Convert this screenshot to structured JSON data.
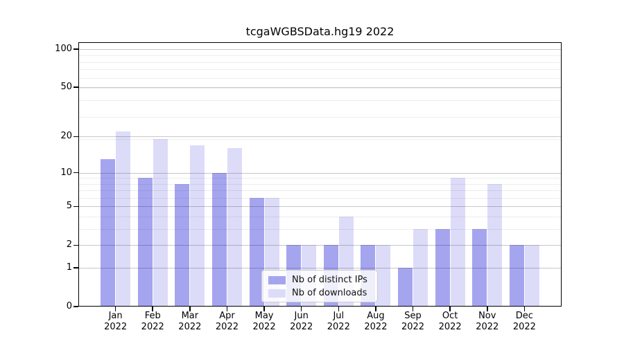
{
  "chart_data": {
    "type": "bar",
    "title": "tcgaWGBSData.hg19 2022",
    "categories": [
      "Jan 2022",
      "Feb 2022",
      "Mar 2022",
      "Apr 2022",
      "May 2022",
      "Jun 2022",
      "Jul 2022",
      "Aug 2022",
      "Sep 2022",
      "Oct 2022",
      "Nov 2022",
      "Dec 2022"
    ],
    "series": [
      {
        "name": "Nb of distinct IPs",
        "color": "#a5a5ef",
        "values": [
          13,
          9,
          8,
          10,
          6,
          2,
          2,
          2,
          1,
          3,
          3,
          2
        ]
      },
      {
        "name": "Nb of downloads",
        "color": "#dcdcf9",
        "values": [
          22,
          19,
          17,
          16,
          6,
          2,
          4,
          2,
          3,
          9,
          8,
          2
        ]
      }
    ],
    "xlabel": "",
    "ylabel": "",
    "yscale": "log1p",
    "ylim": [
      0,
      113
    ],
    "y_ticks": [
      100,
      50,
      20,
      10,
      5,
      2,
      1,
      0
    ],
    "y_minor_gridlines": [
      3,
      4,
      6,
      7,
      8,
      9,
      19,
      29,
      39,
      49,
      59,
      69,
      79,
      89
    ],
    "grid": "both",
    "legend_position": "lower center",
    "colors": {
      "major_grid": "#b0b0b0",
      "minor_grid": "#e8e8e8",
      "spine": "#000000",
      "background": "#ffffff"
    }
  }
}
